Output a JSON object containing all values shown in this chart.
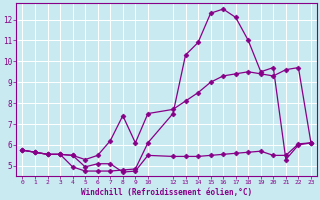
{
  "xlabel": "Windchill (Refroidissement éolien,°C)",
  "background_color": "#c8eaf0",
  "grid_color": "#ffffff",
  "line_color": "#880088",
  "x_ticks": [
    0,
    1,
    2,
    3,
    4,
    5,
    6,
    7,
    8,
    9,
    10,
    12,
    13,
    14,
    15,
    16,
    17,
    18,
    19,
    20,
    21,
    22,
    23
  ],
  "y_ticks": [
    5,
    6,
    7,
    8,
    9,
    10,
    11,
    12
  ],
  "ylim": [
    4.5,
    12.8
  ],
  "xlim": [
    -0.5,
    23.5
  ],
  "series": [
    {
      "x": [
        0,
        1,
        2,
        3,
        4,
        5,
        6,
        7,
        8,
        9,
        10,
        12,
        13,
        14,
        15,
        16,
        17,
        18,
        19,
        20,
        21,
        22,
        23
      ],
      "y": [
        5.75,
        5.65,
        5.55,
        5.55,
        5.5,
        4.95,
        5.1,
        5.1,
        4.7,
        4.75,
        5.5,
        5.45,
        5.45,
        5.45,
        5.5,
        5.55,
        5.6,
        5.65,
        5.7,
        5.5,
        5.5,
        6.05,
        6.1
      ],
      "marker": "D",
      "markersize": 2.5,
      "linewidth": 0.9
    },
    {
      "x": [
        0,
        1,
        2,
        3,
        4,
        5,
        6,
        7,
        8,
        9,
        10,
        12,
        13,
        14,
        15,
        16,
        17,
        18,
        19,
        20,
        21,
        22,
        23
      ],
      "y": [
        5.75,
        5.65,
        5.55,
        5.55,
        5.5,
        5.3,
        5.5,
        6.2,
        7.4,
        6.1,
        7.5,
        7.7,
        8.1,
        8.5,
        9.0,
        9.3,
        9.4,
        9.5,
        9.4,
        9.3,
        9.6,
        9.7,
        6.1
      ],
      "marker": "D",
      "markersize": 2.5,
      "linewidth": 0.9
    },
    {
      "x": [
        0,
        1,
        2,
        3,
        4,
        5,
        6,
        7,
        8,
        9,
        10,
        12,
        13,
        14,
        15,
        16,
        17,
        18,
        19,
        20,
        21,
        22,
        23
      ],
      "y": [
        5.75,
        5.65,
        5.55,
        5.55,
        4.95,
        4.75,
        4.75,
        4.75,
        4.8,
        4.85,
        6.1,
        7.5,
        10.3,
        10.9,
        12.3,
        12.5,
        12.1,
        11.0,
        9.5,
        9.7,
        5.3,
        6.0,
        6.1
      ],
      "marker": "D",
      "markersize": 2.5,
      "linewidth": 0.9
    }
  ]
}
